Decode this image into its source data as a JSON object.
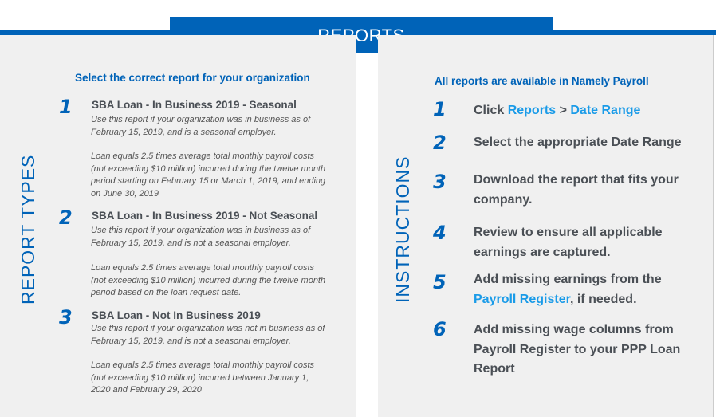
{
  "title": "REPORTS",
  "left": {
    "heading": "REPORT TYPES",
    "subtitle": "Select the correct report for your organization",
    "reports": [
      {
        "num": "1",
        "title": "SBA Loan - In Business 2019 - Seasonal",
        "desc1": "Use this report if your organization was in business as of February 15, 2019, and is a seasonal employer.",
        "desc2": "Loan equals 2.5 times average total monthly payroll costs (not exceeding $10 million) incurred during the twelve month period starting on February 15 or March 1, 2019, and ending on June 30, 2019"
      },
      {
        "num": "2",
        "title": "SBA Loan - In Business 2019 - Not Seasonal",
        "desc1": "Use this report if your organization was in business as of February 15, 2019, and is not a seasonal employer.",
        "desc2": "Loan equals 2.5 times average total monthly payroll costs (not exceeding $10 million) incurred during the twelve month period based on the loan request date."
      },
      {
        "num": "3",
        "title": "SBA Loan - Not In Business 2019",
        "desc1": "Use this report if your organization was not in business as of February 15, 2019, and is not a seasonal employer.",
        "desc2": "Loan equals 2.5 times average total monthly payroll costs (not exceeding $10 million) incurred between January 1, 2020 and February 29, 2020"
      }
    ]
  },
  "right": {
    "heading": "INSTRUCTIONS",
    "subtitle": "All reports are available in Namely Payroll",
    "steps": [
      {
        "num": "1",
        "a": "Click ",
        "link1": "Reports",
        "b": " > ",
        "link2": "Date Range"
      },
      {
        "num": "2",
        "a": "Select the appropriate Date Range"
      },
      {
        "num": "3",
        "a": "Download the report that fits your company."
      },
      {
        "num": "4",
        "a": "Review to ensure all applicable earnings are captured."
      },
      {
        "num": "5",
        "a": "Add missing earnings from the ",
        "link1": "Payroll Register",
        "b": ", if needed."
      },
      {
        "num": "6",
        "a": "Add missing wage columns from Payroll Register to your PPP Loan Report"
      }
    ]
  },
  "colors": {
    "brand": "#0063b8",
    "link": "#1a9be8",
    "panel": "#f0f0f0"
  }
}
